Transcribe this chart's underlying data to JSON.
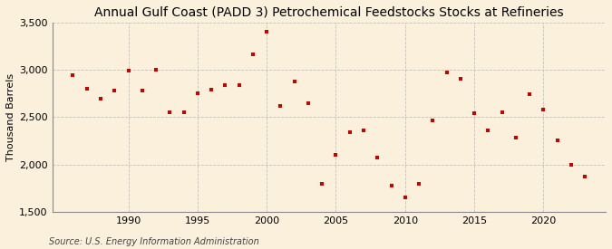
{
  "title": "Annual Gulf Coast (PADD 3) Petrochemical Feedstocks Stocks at Refineries",
  "ylabel": "Thousand Barrels",
  "source": "Source: U.S. Energy Information Administration",
  "background_color": "#faf0dc",
  "plot_background_color": "#faf0dc",
  "marker_color": "#cc0000",
  "years": [
    1986,
    1987,
    1988,
    1989,
    1990,
    1991,
    1992,
    1993,
    1994,
    1995,
    1996,
    1997,
    1998,
    1999,
    2000,
    2001,
    2002,
    2003,
    2004,
    2005,
    2006,
    2007,
    2008,
    2009,
    2010,
    2011,
    2012,
    2013,
    2014,
    2015,
    2016,
    2017,
    2018,
    2019,
    2020,
    2021,
    2022,
    2023
  ],
  "values": [
    2940,
    2800,
    2700,
    2780,
    2990,
    2780,
    3005,
    2555,
    2555,
    2750,
    2790,
    2840,
    2840,
    3165,
    3400,
    2620,
    2880,
    2650,
    1800,
    2100,
    2340,
    2360,
    2070,
    1780,
    1650,
    1800,
    2470,
    2970,
    2910,
    2545,
    2360,
    2555,
    2280,
    2740,
    2580,
    2255,
    2000,
    1870
  ],
  "xlim": [
    1984.5,
    2024.5
  ],
  "ylim": [
    1500,
    3500
  ],
  "yticks": [
    1500,
    2000,
    2500,
    3000,
    3500
  ],
  "xticks": [
    1990,
    1995,
    2000,
    2005,
    2010,
    2015,
    2020
  ],
  "grid_color": "#bbbbbb",
  "title_fontsize": 10,
  "label_fontsize": 8,
  "tick_fontsize": 8,
  "source_fontsize": 7
}
